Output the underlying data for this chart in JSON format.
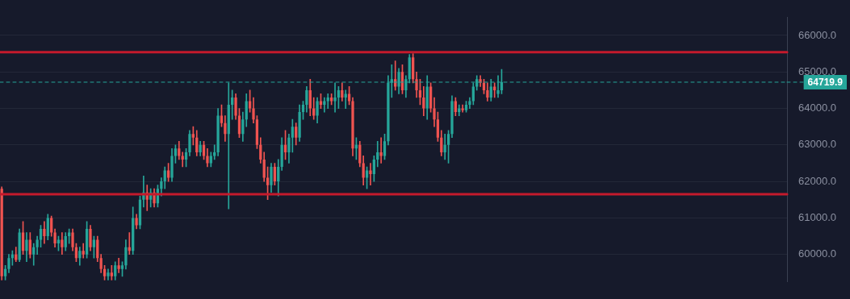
{
  "chart_data": {
    "type": "candlestick",
    "categories": [
      null,
      null,
      null,
      null,
      null,
      null,
      null,
      null,
      null,
      null,
      null,
      null,
      null,
      null,
      null,
      null,
      null,
      null,
      null,
      null,
      null,
      null,
      null,
      null,
      null,
      null,
      null,
      null,
      null,
      null,
      null,
      null,
      null,
      null,
      null,
      null,
      null,
      null,
      null,
      null,
      null,
      null,
      null,
      null,
      null,
      null,
      null,
      null,
      null,
      null,
      null,
      null,
      null,
      null,
      null,
      null,
      null,
      null,
      null,
      null,
      null,
      null,
      null,
      null,
      null,
      null,
      null,
      null,
      null,
      null,
      null,
      null,
      null,
      null,
      null,
      null,
      null,
      null,
      null,
      null,
      null,
      null,
      null,
      null,
      null,
      null,
      null,
      null,
      null,
      null,
      null,
      null,
      null,
      null,
      null,
      null,
      null,
      null,
      null,
      null,
      null,
      null,
      null,
      null,
      null,
      null,
      null,
      null,
      null,
      null,
      null,
      null,
      null,
      null,
      null,
      null,
      null,
      null,
      null,
      null,
      null,
      null,
      null,
      null,
      null,
      null,
      null,
      null,
      null,
      null,
      null,
      null,
      null,
      null,
      null,
      null,
      null,
      null,
      null,
      null,
      null,
      null,
      null,
      null,
      null,
      null,
      null,
      null,
      null,
      null,
      null,
      null,
      null,
      null,
      null,
      null,
      null,
      null,
      null,
      null,
      null,
      null,
      null,
      null,
      null,
      null,
      null,
      null,
      null,
      null,
      null,
      null,
      null,
      null,
      null,
      null,
      null,
      null,
      null,
      null,
      null,
      null,
      null,
      null,
      null,
      null,
      null,
      null,
      null,
      null,
      null,
      null,
      null,
      null,
      null,
      null,
      null,
      null,
      null,
      null,
      null,
      null,
      null,
      null,
      null,
      null,
      null,
      null,
      null,
      null,
      null,
      null,
      null,
      null,
      null,
      null,
      null,
      null,
      null,
      null,
      null,
      null
    ],
    "ohlc": [
      [
        61800,
        61850,
        59300,
        59400
      ],
      [
        59400,
        59700,
        59300,
        59600
      ],
      [
        59600,
        60000,
        59500,
        59900
      ],
      [
        59900,
        60100,
        59700,
        60000
      ],
      [
        60000,
        60200,
        59800,
        59850
      ],
      [
        59850,
        60700,
        59800,
        60600
      ],
      [
        60600,
        60900,
        60000,
        60100
      ],
      [
        60100,
        60600,
        59800,
        60400
      ],
      [
        60400,
        60600,
        59900,
        60000
      ],
      [
        60000,
        60300,
        59700,
        60200
      ],
      [
        60200,
        60500,
        60000,
        60400
      ],
      [
        60400,
        60800,
        60200,
        60700
      ],
      [
        60700,
        60900,
        60300,
        60500
      ],
      [
        60500,
        61100,
        60400,
        61000
      ],
      [
        61000,
        61050,
        60500,
        60600
      ],
      [
        60600,
        60700,
        60200,
        60300
      ],
      [
        60300,
        60500,
        60100,
        60400
      ],
      [
        60400,
        60600,
        60000,
        60200
      ],
      [
        60200,
        60600,
        60100,
        60500
      ],
      [
        60500,
        60700,
        60300,
        60600
      ],
      [
        60600,
        60700,
        60100,
        60200
      ],
      [
        60200,
        60300,
        59800,
        59900
      ],
      [
        59900,
        60200,
        59700,
        60100
      ],
      [
        60100,
        60300,
        59900,
        60000
      ],
      [
        60000,
        60900,
        59900,
        60700
      ],
      [
        60700,
        60800,
        60100,
        60200
      ],
      [
        60200,
        60500,
        59900,
        60400
      ],
      [
        60400,
        60500,
        59800,
        59900
      ],
      [
        59900,
        60000,
        59500,
        59600
      ],
      [
        59600,
        59700,
        59300,
        59400
      ],
      [
        59400,
        59600,
        59300,
        59500
      ],
      [
        59500,
        59700,
        59300,
        59400
      ],
      [
        59400,
        59800,
        59300,
        59700
      ],
      [
        59700,
        59900,
        59500,
        59600
      ],
      [
        59600,
        59800,
        59400,
        59700
      ],
      [
        59700,
        60400,
        59600,
        60200
      ],
      [
        60200,
        60600,
        60000,
        60100
      ],
      [
        60100,
        61300,
        60000,
        61000
      ],
      [
        61000,
        61100,
        60700,
        60800
      ],
      [
        60800,
        61600,
        60700,
        61500
      ],
      [
        61500,
        62150,
        61300,
        61700
      ],
      [
        61700,
        61900,
        61200,
        61500
      ],
      [
        61500,
        61800,
        61300,
        61700
      ],
      [
        61700,
        61800,
        61300,
        61400
      ],
      [
        61400,
        61900,
        61300,
        61800
      ],
      [
        61800,
        62100,
        61600,
        62000
      ],
      [
        62000,
        62400,
        61800,
        62300
      ],
      [
        62300,
        62500,
        62000,
        62100
      ],
      [
        62100,
        62900,
        62000,
        62700
      ],
      [
        62700,
        63000,
        62500,
        62900
      ],
      [
        62900,
        63100,
        62600,
        62700
      ],
      [
        62700,
        62800,
        62400,
        62600
      ],
      [
        62600,
        62900,
        62400,
        62800
      ],
      [
        62800,
        63400,
        62700,
        63300
      ],
      [
        63300,
        63500,
        63000,
        63200
      ],
      [
        63200,
        63400,
        62700,
        62800
      ],
      [
        62800,
        63100,
        62700,
        63000
      ],
      [
        63000,
        63100,
        62600,
        62700
      ],
      [
        62700,
        62900,
        62400,
        62500
      ],
      [
        62500,
        62800,
        62400,
        62700
      ],
      [
        62700,
        63000,
        62600,
        62800
      ],
      [
        62800,
        64000,
        62700,
        63800
      ],
      [
        63800,
        64100,
        63500,
        63600
      ],
      [
        63600,
        63800,
        63100,
        63300
      ],
      [
        63300,
        64700,
        61250,
        64100
      ],
      [
        64100,
        64500,
        63700,
        64300
      ],
      [
        64300,
        64400,
        63700,
        63800
      ],
      [
        63800,
        64000,
        63200,
        63300
      ],
      [
        63300,
        63900,
        63100,
        63700
      ],
      [
        63700,
        64400,
        63500,
        64200
      ],
      [
        64200,
        64500,
        63900,
        64000
      ],
      [
        64000,
        64300,
        63600,
        63700
      ],
      [
        63700,
        63800,
        62900,
        63000
      ],
      [
        63000,
        63200,
        62500,
        62600
      ],
      [
        62600,
        62800,
        62000,
        62100
      ],
      [
        62100,
        62400,
        61500,
        61900
      ],
      [
        61900,
        62500,
        61700,
        62400
      ],
      [
        62400,
        62500,
        61900,
        62000
      ],
      [
        62000,
        62600,
        61600,
        62400
      ],
      [
        62400,
        63200,
        62300,
        63000
      ],
      [
        63000,
        63400,
        62600,
        62800
      ],
      [
        62800,
        63300,
        62500,
        63200
      ],
      [
        63200,
        63700,
        62800,
        63500
      ],
      [
        63500,
        63600,
        63000,
        63200
      ],
      [
        63200,
        64100,
        63100,
        63900
      ],
      [
        63900,
        64200,
        63700,
        64100
      ],
      [
        64100,
        64600,
        63900,
        64500
      ],
      [
        64500,
        64800,
        63800,
        64000
      ],
      [
        64000,
        64300,
        63700,
        63800
      ],
      [
        63800,
        64300,
        63600,
        64200
      ],
      [
        64200,
        64400,
        64000,
        64100
      ],
      [
        64100,
        64300,
        63900,
        64200
      ],
      [
        64200,
        64400,
        64000,
        64300
      ],
      [
        64300,
        64400,
        64100,
        64200
      ],
      [
        64200,
        64700,
        63900,
        64300
      ],
      [
        64300,
        64600,
        64000,
        64500
      ],
      [
        64500,
        64700,
        64200,
        64300
      ],
      [
        64300,
        64500,
        64000,
        64400
      ],
      [
        64400,
        64600,
        64100,
        64200
      ],
      [
        64200,
        64300,
        62700,
        62900
      ],
      [
        62900,
        63200,
        62600,
        63000
      ],
      [
        63000,
        63100,
        62400,
        62500
      ],
      [
        62500,
        62700,
        61900,
        62100
      ],
      [
        62100,
        62400,
        61800,
        62300
      ],
      [
        62300,
        62500,
        61900,
        62200
      ],
      [
        62200,
        62700,
        62000,
        62600
      ],
      [
        62600,
        63100,
        62400,
        62800
      ],
      [
        62800,
        63200,
        62500,
        62700
      ],
      [
        62700,
        63300,
        62600,
        63100
      ],
      [
        63100,
        64900,
        63000,
        64700
      ],
      [
        64700,
        65200,
        64300,
        64800
      ],
      [
        64800,
        65300,
        64500,
        64600
      ],
      [
        64600,
        65100,
        64400,
        65000
      ],
      [
        65000,
        65200,
        64400,
        64500
      ],
      [
        64500,
        64900,
        64300,
        64800
      ],
      [
        64800,
        65480,
        64700,
        65400
      ],
      [
        65400,
        65500,
        64700,
        64800
      ],
      [
        64800,
        65000,
        64300,
        64500
      ],
      [
        64500,
        64800,
        64100,
        64300
      ],
      [
        64300,
        64600,
        63800,
        64000
      ],
      [
        64000,
        64900,
        63700,
        64600
      ],
      [
        64600,
        64700,
        63900,
        64000
      ],
      [
        64000,
        64300,
        63500,
        63700
      ],
      [
        63700,
        63900,
        63100,
        63200
      ],
      [
        63200,
        63400,
        62700,
        62800
      ],
      [
        62800,
        63300,
        62600,
        63000
      ],
      [
        63000,
        63400,
        62500,
        63300
      ],
      [
        63300,
        64350,
        63200,
        64200
      ],
      [
        64200,
        64300,
        63800,
        63900
      ],
      [
        63900,
        64100,
        63800,
        64000
      ],
      [
        64000,
        64100,
        63900,
        63950
      ],
      [
        63950,
        64200,
        63900,
        64100
      ],
      [
        64100,
        64300,
        64000,
        64200
      ],
      [
        64200,
        64700,
        64100,
        64600
      ],
      [
        64600,
        64900,
        64500,
        64800
      ],
      [
        64800,
        64900,
        64600,
        64700
      ],
      [
        64700,
        64800,
        64400,
        64500
      ],
      [
        64500,
        64700,
        64200,
        64300
      ],
      [
        64300,
        64800,
        64200,
        64600
      ],
      [
        64600,
        64700,
        64300,
        64500
      ],
      [
        64400,
        64900,
        64300,
        64500
      ],
      [
        64500,
        65070,
        64400,
        64719.9
      ],
      null,
      null,
      null,
      null,
      null,
      null,
      null,
      null,
      null,
      null,
      null,
      null,
      null,
      null,
      null,
      null,
      null,
      null,
      null,
      null,
      null,
      null,
      null,
      null,
      null,
      null,
      null,
      null,
      null,
      null,
      null,
      null,
      null,
      null,
      null,
      null,
      null,
      null,
      null,
      null,
      null,
      null,
      null,
      null,
      null,
      null,
      null,
      null,
      null,
      null,
      null,
      null,
      null,
      null,
      null,
      null,
      null,
      null,
      null,
      null,
      null,
      null,
      null,
      null,
      null,
      null,
      null,
      null,
      null,
      null,
      null,
      null,
      null,
      null,
      null,
      null,
      null,
      null,
      null,
      null
    ],
    "colors": [
      "#ef5350",
      "#26a69a",
      "#26a69a",
      "#26a69a",
      "#ef5350",
      "#26a69a",
      "#ef5350",
      "#26a69a",
      "#ef5350",
      "#26a69a",
      "#26a69a",
      "#26a69a",
      "#ef5350",
      "#26a69a",
      "#ef5350",
      "#ef5350",
      "#26a69a",
      "#ef5350",
      "#26a69a",
      "#26a69a",
      "#ef5350",
      "#ef5350",
      "#26a69a",
      "#ef5350",
      "#26a69a",
      "#ef5350",
      "#26a69a",
      "#ef5350",
      "#ef5350",
      "#ef5350",
      "#26a69a",
      "#ef5350",
      "#26a69a",
      "#ef5350",
      "#26a69a",
      "#26a69a",
      "#ef5350",
      "#26a69a",
      "#ef5350",
      "#26a69a",
      "#26a69a",
      "#ef5350",
      "#26a69a",
      "#ef5350",
      "#26a69a",
      "#26a69a",
      "#26a69a",
      "#ef5350",
      "#26a69a",
      "#26a69a",
      "#ef5350",
      "#ef5350",
      "#26a69a",
      "#26a69a",
      "#ef5350",
      "#ef5350",
      "#26a69a",
      "#ef5350",
      "#ef5350",
      "#26a69a",
      "#26a69a",
      "#26a69a",
      "#ef5350",
      "#ef5350",
      "#26a69a",
      "#26a69a",
      "#ef5350",
      "#ef5350",
      "#26a69a",
      "#26a69a",
      "#ef5350",
      "#ef5350",
      "#ef5350",
      "#ef5350",
      "#ef5350",
      "#ef5350",
      "#26a69a",
      "#ef5350",
      "#26a69a",
      "#26a69a",
      "#ef5350",
      "#26a69a",
      "#26a69a",
      "#ef5350",
      "#26a69a",
      "#26a69a",
      "#26a69a",
      "#ef5350",
      "#ef5350",
      "#26a69a",
      "#ef5350",
      "#26a69a",
      "#26a69a",
      "#ef5350",
      "#26a69a",
      "#26a69a",
      "#ef5350",
      "#26a69a",
      "#ef5350",
      "#ef5350",
      "#26a69a",
      "#ef5350",
      "#ef5350",
      "#26a69a",
      "#ef5350",
      "#26a69a",
      "#26a69a",
      "#ef5350",
      "#26a69a",
      "#26a69a",
      "#26a69a",
      "#ef5350",
      "#26a69a",
      "#ef5350",
      "#26a69a",
      "#26a69a",
      "#ef5350",
      "#ef5350",
      "#ef5350",
      "#ef5350",
      "#26a69a",
      "#ef5350",
      "#ef5350",
      "#ef5350",
      "#ef5350",
      "#26a69a",
      "#26a69a",
      "#26a69a",
      "#ef5350",
      "#26a69a",
      "#ef5350",
      "#26a69a",
      "#26a69a",
      "#26a69a",
      "#26a69a",
      "#ef5350",
      "#ef5350",
      "#ef5350",
      "#26a69a",
      "#ef5350",
      "#26a69a",
      "#26a69a",
      null,
      null,
      null,
      null,
      null,
      null,
      null,
      null,
      null,
      null,
      null,
      null,
      null,
      null,
      null,
      null,
      null,
      null,
      null,
      null,
      null,
      null,
      null,
      null,
      null,
      null,
      null,
      null,
      null,
      null,
      null,
      null,
      null,
      null,
      null,
      null,
      null,
      null,
      null,
      null,
      null,
      null,
      null,
      null,
      null,
      null,
      null,
      null,
      null,
      null,
      null,
      null,
      null,
      null,
      null,
      null,
      null,
      null,
      null,
      null,
      null,
      null,
      null,
      null,
      null,
      null,
      null,
      null,
      null,
      null,
      null,
      null,
      null,
      null,
      null,
      null,
      null,
      null,
      null,
      null
    ],
    "ylim": [
      59260,
      66490
    ],
    "yticks": [
      {
        "value": 60000,
        "label": "60000.0"
      },
      {
        "value": 61000,
        "label": "61000.0"
      },
      {
        "value": 62000,
        "label": "62000.0"
      },
      {
        "value": 63000,
        "label": "63000.0"
      },
      {
        "value": 64000,
        "label": "64000.0"
      },
      {
        "value": 65000,
        "label": "65000.0"
      },
      {
        "value": 66000,
        "label": "66000.0"
      }
    ],
    "ref_lines": [
      {
        "axis": "y",
        "value": 65540,
        "color": "#c41a2c"
      },
      {
        "axis": "y",
        "value": 61650,
        "color": "#c41a2c"
      },
      {
        "axis": "y",
        "value": 64719.9,
        "label": "64719.9",
        "color": "#26a69a",
        "line_style": "dashed"
      }
    ],
    "grid": "y",
    "tick_labels": "y"
  }
}
